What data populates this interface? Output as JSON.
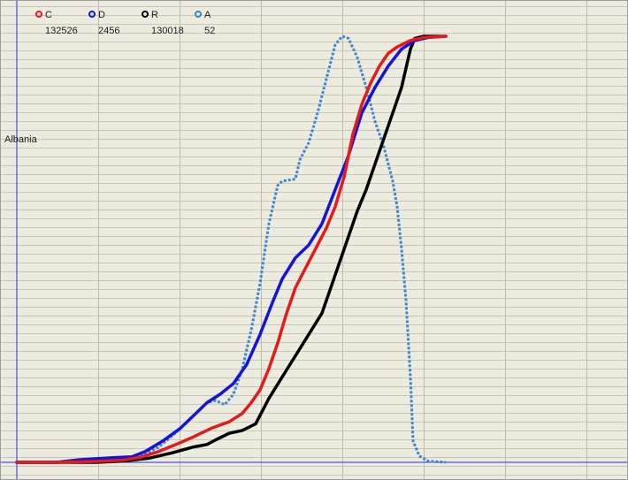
{
  "region_label": "Albania",
  "legend": [
    {
      "label": "C",
      "count": "132526",
      "color": "#e41a1c"
    },
    {
      "label": "D",
      "count": "2456",
      "color": "#1414d8"
    },
    {
      "label": "R",
      "count": "130018",
      "color": "#000000"
    },
    {
      "label": "A",
      "count": "52",
      "color": "#3f86cc"
    }
  ],
  "chart_data": {
    "type": "line",
    "title": "",
    "xlabel": "",
    "ylabel": "",
    "xlim": [
      0,
      690
    ],
    "ylim": [
      0,
      100
    ],
    "grid": true,
    "legend_position": "top-left",
    "series": [
      {
        "key": "C",
        "color": "#e41a1c",
        "style": "solid",
        "points": [
          [
            0,
            0
          ],
          [
            45,
            0
          ],
          [
            90,
            0.2
          ],
          [
            120,
            0.5
          ],
          [
            140,
            1.2
          ],
          [
            160,
            2.5
          ],
          [
            180,
            4.2
          ],
          [
            200,
            6
          ],
          [
            220,
            8
          ],
          [
            240,
            9.5
          ],
          [
            255,
            11.5
          ],
          [
            265,
            14
          ],
          [
            275,
            17
          ],
          [
            285,
            22
          ],
          [
            295,
            28
          ],
          [
            305,
            35
          ],
          [
            315,
            41
          ],
          [
            325,
            45
          ],
          [
            340,
            51
          ],
          [
            350,
            55
          ],
          [
            360,
            60
          ],
          [
            370,
            67
          ],
          [
            380,
            77
          ],
          [
            390,
            84
          ],
          [
            400,
            89
          ],
          [
            410,
            93
          ],
          [
            420,
            96
          ],
          [
            430,
            97.5
          ],
          [
            445,
            99
          ],
          [
            460,
            99.7
          ],
          [
            485,
            100
          ]
        ]
      },
      {
        "key": "D",
        "color": "#1414d8",
        "style": "solid",
        "points": [
          [
            0,
            0
          ],
          [
            45,
            0
          ],
          [
            70,
            0.6
          ],
          [
            100,
            1
          ],
          [
            130,
            1.3
          ],
          [
            145,
            2.5
          ],
          [
            165,
            5
          ],
          [
            185,
            8
          ],
          [
            200,
            11
          ],
          [
            215,
            14
          ],
          [
            230,
            16
          ],
          [
            245,
            18.5
          ],
          [
            260,
            23
          ],
          [
            275,
            30
          ],
          [
            290,
            38
          ],
          [
            300,
            43
          ],
          [
            315,
            48
          ],
          [
            330,
            51
          ],
          [
            345,
            56
          ],
          [
            360,
            64
          ],
          [
            375,
            72
          ],
          [
            390,
            82
          ],
          [
            405,
            88
          ],
          [
            420,
            93
          ],
          [
            435,
            97
          ],
          [
            450,
            99
          ],
          [
            465,
            99.7
          ],
          [
            485,
            100
          ]
        ]
      },
      {
        "key": "R",
        "color": "#000000",
        "style": "solid",
        "points": [
          [
            0,
            0
          ],
          [
            90,
            0
          ],
          [
            120,
            0.3
          ],
          [
            150,
            1
          ],
          [
            175,
            2.2
          ],
          [
            200,
            3.6
          ],
          [
            215,
            4.2
          ],
          [
            225,
            5.3
          ],
          [
            240,
            6.8
          ],
          [
            255,
            7.5
          ],
          [
            270,
            9
          ],
          [
            285,
            15
          ],
          [
            300,
            20
          ],
          [
            315,
            25
          ],
          [
            330,
            30
          ],
          [
            345,
            35
          ],
          [
            355,
            41
          ],
          [
            365,
            47
          ],
          [
            375,
            53
          ],
          [
            385,
            59
          ],
          [
            395,
            64
          ],
          [
            405,
            70
          ],
          [
            415,
            76
          ],
          [
            425,
            82
          ],
          [
            435,
            88
          ],
          [
            445,
            97
          ],
          [
            450,
            99.5
          ],
          [
            460,
            100
          ],
          [
            485,
            100
          ]
        ]
      },
      {
        "key": "A",
        "color": "#3f86cc",
        "style": "dotted",
        "points": [
          [
            0,
            0
          ],
          [
            45,
            0
          ],
          [
            100,
            0.3
          ],
          [
            140,
            1.5
          ],
          [
            160,
            3.5
          ],
          [
            180,
            7
          ],
          [
            195,
            10
          ],
          [
            205,
            12
          ],
          [
            215,
            14
          ],
          [
            225,
            14.5
          ],
          [
            235,
            13.5
          ],
          [
            245,
            16
          ],
          [
            255,
            22
          ],
          [
            265,
            31
          ],
          [
            275,
            42
          ],
          [
            285,
            56
          ],
          [
            295,
            65
          ],
          [
            300,
            66
          ],
          [
            315,
            66.5
          ],
          [
            320,
            71
          ],
          [
            330,
            75
          ],
          [
            340,
            82
          ],
          [
            350,
            90
          ],
          [
            360,
            98
          ],
          [
            368,
            100
          ],
          [
            375,
            99.5
          ],
          [
            385,
            95
          ],
          [
            395,
            88
          ],
          [
            405,
            80
          ],
          [
            415,
            74
          ],
          [
            425,
            66
          ],
          [
            430,
            60
          ],
          [
            435,
            50
          ],
          [
            440,
            38
          ],
          [
            445,
            20
          ],
          [
            448,
            5
          ],
          [
            455,
            1.5
          ],
          [
            465,
            0.3
          ],
          [
            485,
            0
          ]
        ]
      }
    ]
  }
}
